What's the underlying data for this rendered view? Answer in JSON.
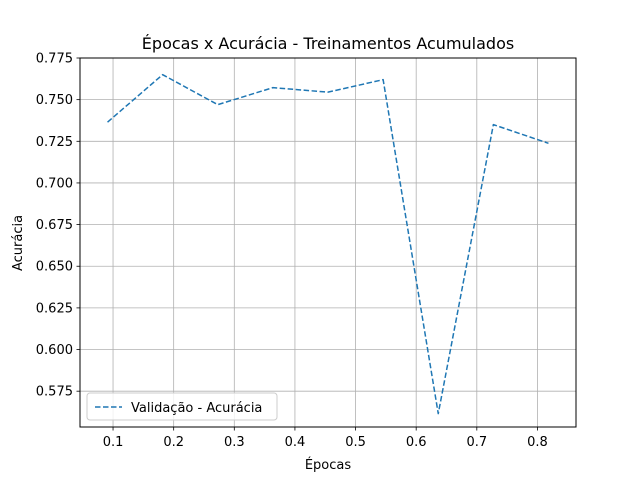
{
  "chart_data": {
    "type": "line",
    "title": "Épocas x Acurácia - Treinamentos Acumulados",
    "xlabel": "Épocas",
    "ylabel": "Acurácia",
    "xlim": [
      0.0455,
      0.8636
    ],
    "ylim": [
      0.5535,
      0.775
    ],
    "x_ticks": [
      0.1,
      0.2,
      0.3,
      0.4,
      0.5,
      0.6,
      0.7,
      0.8
    ],
    "x_tick_labels": [
      "0.1",
      "0.2",
      "0.3",
      "0.4",
      "0.5",
      "0.6",
      "0.7",
      "0.8"
    ],
    "y_ticks": [
      0.575,
      0.6,
      0.625,
      0.65,
      0.675,
      0.7,
      0.725,
      0.75,
      0.775
    ],
    "y_tick_labels": [
      "0.575",
      "0.600",
      "0.625",
      "0.650",
      "0.675",
      "0.700",
      "0.725",
      "0.750",
      "0.775"
    ],
    "grid": true,
    "legend_position": "lower-left",
    "series": [
      {
        "name": "Validação - Acurácia",
        "style": "dashed",
        "color": "#1f77b4",
        "x": [
          0.0909,
          0.1818,
          0.2727,
          0.3636,
          0.4545,
          0.5455,
          0.6364,
          0.7273,
          0.8182
        ],
        "y": [
          0.7365,
          0.765,
          0.747,
          0.7572,
          0.7545,
          0.762,
          0.5615,
          0.735,
          0.7238
        ]
      }
    ]
  }
}
